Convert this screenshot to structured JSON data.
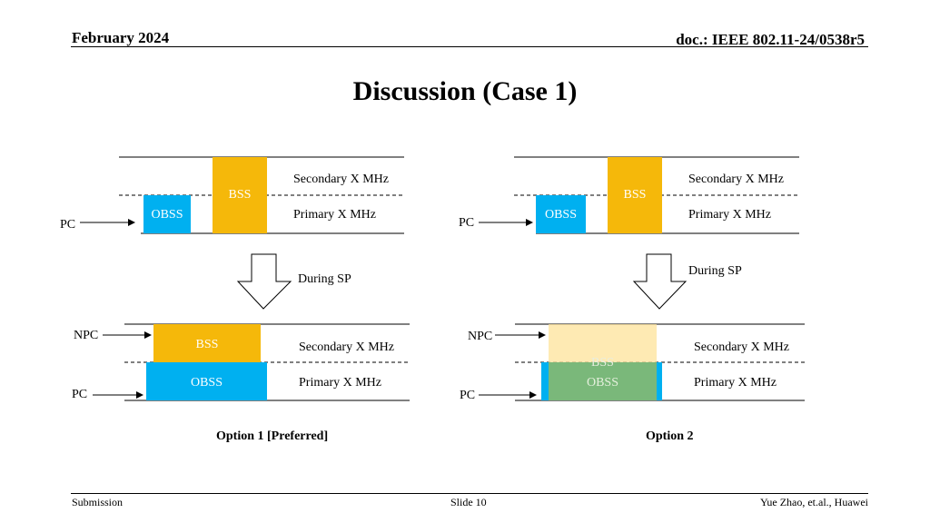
{
  "header": {
    "date": "February 2024",
    "doc": "doc.: IEEE 802.11-24/0538r5"
  },
  "title": "Discussion (Case 1)",
  "colors": {
    "bss": "#f5b80a",
    "obss": "#00b0f0",
    "bss_faded": "#fde39a",
    "overlap": "#7ab87a"
  },
  "before": {
    "secondary": "Secondary X MHz",
    "primary": "Primary X MHz",
    "bss": "BSS",
    "obss": "OBSS",
    "pc": "PC"
  },
  "during_sp": "During SP",
  "option1": {
    "npc": "NPC",
    "pc": "PC",
    "bss": "BSS",
    "obss": "OBSS",
    "secondary": "Secondary X MHz",
    "primary": "Primary X MHz",
    "caption": "Option 1 [Preferred]"
  },
  "option2": {
    "npc": "NPC",
    "pc": "PC",
    "bss": "BSS",
    "obss": "OBSS",
    "secondary": "Secondary X MHz",
    "primary": "Primary X MHz",
    "caption": "Option 2"
  },
  "footer": {
    "left": "Submission",
    "center": "Slide 10",
    "right": "Yue Zhao, et.al., Huawei"
  }
}
